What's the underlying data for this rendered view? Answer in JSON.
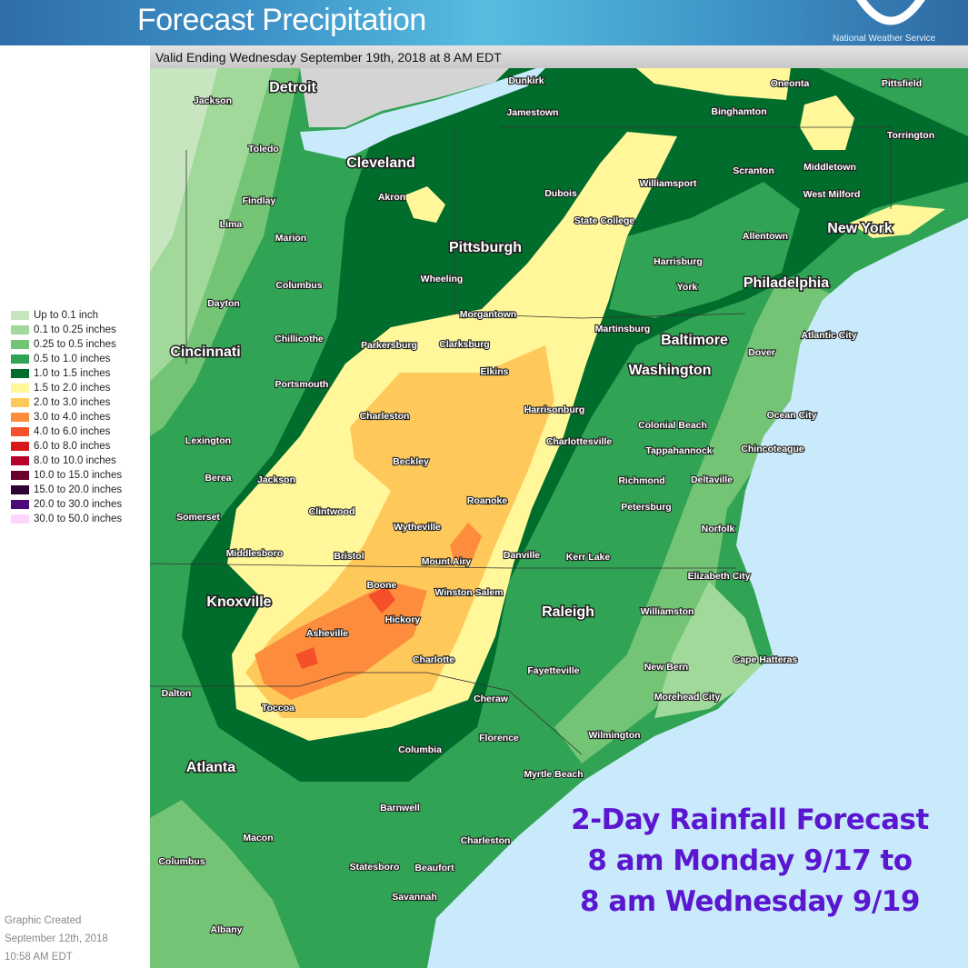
{
  "header": {
    "title": "Forecast Precipitation",
    "agency": "National Weather Service",
    "valid_text": "Valid Ending Wednesday September 19th, 2018 at 8 AM EDT"
  },
  "legend": [
    {
      "label": "Up to 0.1 inch",
      "color": "#c7e6c0"
    },
    {
      "label": "0.1 to 0.25 inches",
      "color": "#a1d99b"
    },
    {
      "label": "0.25 to 0.5 inches",
      "color": "#74c476"
    },
    {
      "label": "0.5 to 1.0 inches",
      "color": "#31a354"
    },
    {
      "label": "1.0 to 1.5 inches",
      "color": "#006d2c"
    },
    {
      "label": "1.5 to 2.0 inches",
      "color": "#fff79a"
    },
    {
      "label": "2.0 to 3.0 inches",
      "color": "#ffc85a"
    },
    {
      "label": "3.0 to 4.0 inches",
      "color": "#fd8d3c"
    },
    {
      "label": "4.0 to 6.0 inches",
      "color": "#f5502a"
    },
    {
      "label": "6.0 to 8.0 inches",
      "color": "#d7191c"
    },
    {
      "label": "8.0 to 10.0 inches",
      "color": "#b8002b"
    },
    {
      "label": "10.0 to 15.0 inches",
      "color": "#6b0030"
    },
    {
      "label": "15.0 to 20.0 inches",
      "color": "#2f0032"
    },
    {
      "label": "20.0 to 30.0 inches",
      "color": "#4a0a7a"
    },
    {
      "label": "30.0 to 50.0 inches",
      "color": "#fbd5fb"
    }
  ],
  "credit": [
    "Graphic Created",
    "September 12th, 2018",
    "10:58 AM EDT"
  ],
  "annotation": [
    "2-Day Rainfall Forecast",
    "8 am Monday 9/17 to",
    "8 am Wednesday 9/19"
  ],
  "annotation_color": "#5a17d0",
  "water_color": "#c9eafb",
  "cities": [
    {
      "name": "Detroit",
      "major": true
    },
    {
      "name": "Jackson"
    },
    {
      "name": "Toledo"
    },
    {
      "name": "Cleveland",
      "major": true
    },
    {
      "name": "Akron"
    },
    {
      "name": "Findlay"
    },
    {
      "name": "Lima"
    },
    {
      "name": "Marion"
    },
    {
      "name": "Columbus"
    },
    {
      "name": "Dayton"
    },
    {
      "name": "Chillicothe"
    },
    {
      "name": "Cincinnati",
      "major": true
    },
    {
      "name": "Portsmouth"
    },
    {
      "name": "Lexington"
    },
    {
      "name": "Berea"
    },
    {
      "name": "Jackson"
    },
    {
      "name": "Somerset"
    },
    {
      "name": "Middlesboro"
    },
    {
      "name": "Knoxville",
      "major": true
    },
    {
      "name": "Dalton"
    },
    {
      "name": "Atlanta",
      "major": true
    },
    {
      "name": "Macon"
    },
    {
      "name": "Columbus"
    },
    {
      "name": "Albany"
    },
    {
      "name": "Dunkirk"
    },
    {
      "name": "Jamestown"
    },
    {
      "name": "Pittsburgh",
      "major": true
    },
    {
      "name": "Wheeling"
    },
    {
      "name": "Morgantown"
    },
    {
      "name": "Parkersburg"
    },
    {
      "name": "Clarksburg"
    },
    {
      "name": "Elkins"
    },
    {
      "name": "Charleston"
    },
    {
      "name": "Beckley"
    },
    {
      "name": "Clintwood"
    },
    {
      "name": "Wytheville"
    },
    {
      "name": "Bristol"
    },
    {
      "name": "Roanoke"
    },
    {
      "name": "Mount Airy"
    },
    {
      "name": "Boone"
    },
    {
      "name": "Winston Salem"
    },
    {
      "name": "Hickory"
    },
    {
      "name": "Asheville"
    },
    {
      "name": "Charlotte"
    },
    {
      "name": "Toccoa"
    },
    {
      "name": "Columbia"
    },
    {
      "name": "Barnwell"
    },
    {
      "name": "Statesboro"
    },
    {
      "name": "Beaufort"
    },
    {
      "name": "Savannah"
    },
    {
      "name": "Charleston"
    },
    {
      "name": "Myrtle Beach"
    },
    {
      "name": "Florence"
    },
    {
      "name": "Cheraw"
    },
    {
      "name": "Fayetteville"
    },
    {
      "name": "Raleigh",
      "major": true
    },
    {
      "name": "Danville"
    },
    {
      "name": "Kerr Lake"
    },
    {
      "name": "Petersburg"
    },
    {
      "name": "Richmond"
    },
    {
      "name": "Deltaville"
    },
    {
      "name": "Tappahannock"
    },
    {
      "name": "Colonial Beach"
    },
    {
      "name": "Charlottesville"
    },
    {
      "name": "Harrisonburg"
    },
    {
      "name": "Martinsburg"
    },
    {
      "name": "Washington",
      "major": true
    },
    {
      "name": "Baltimore",
      "major": true
    },
    {
      "name": "Dover"
    },
    {
      "name": "Atlantic City"
    },
    {
      "name": "Ocean City"
    },
    {
      "name": "Chincoteague"
    },
    {
      "name": "Norfolk"
    },
    {
      "name": "Elizabeth City"
    },
    {
      "name": "Williamston"
    },
    {
      "name": "New Bern"
    },
    {
      "name": "Cape Hatteras"
    },
    {
      "name": "Morehead City"
    },
    {
      "name": "Wilmington"
    },
    {
      "name": "Dubois"
    },
    {
      "name": "State College"
    },
    {
      "name": "Williamsport"
    },
    {
      "name": "Harrisburg"
    },
    {
      "name": "York"
    },
    {
      "name": "Philadelphia",
      "major": true
    },
    {
      "name": "Allentown"
    },
    {
      "name": "Scranton"
    },
    {
      "name": "Binghamton"
    },
    {
      "name": "Oneonta"
    },
    {
      "name": "Pittsfield"
    },
    {
      "name": "Torrington"
    },
    {
      "name": "Middletown"
    },
    {
      "name": "West Milford"
    },
    {
      "name": "New York",
      "major": true
    }
  ]
}
